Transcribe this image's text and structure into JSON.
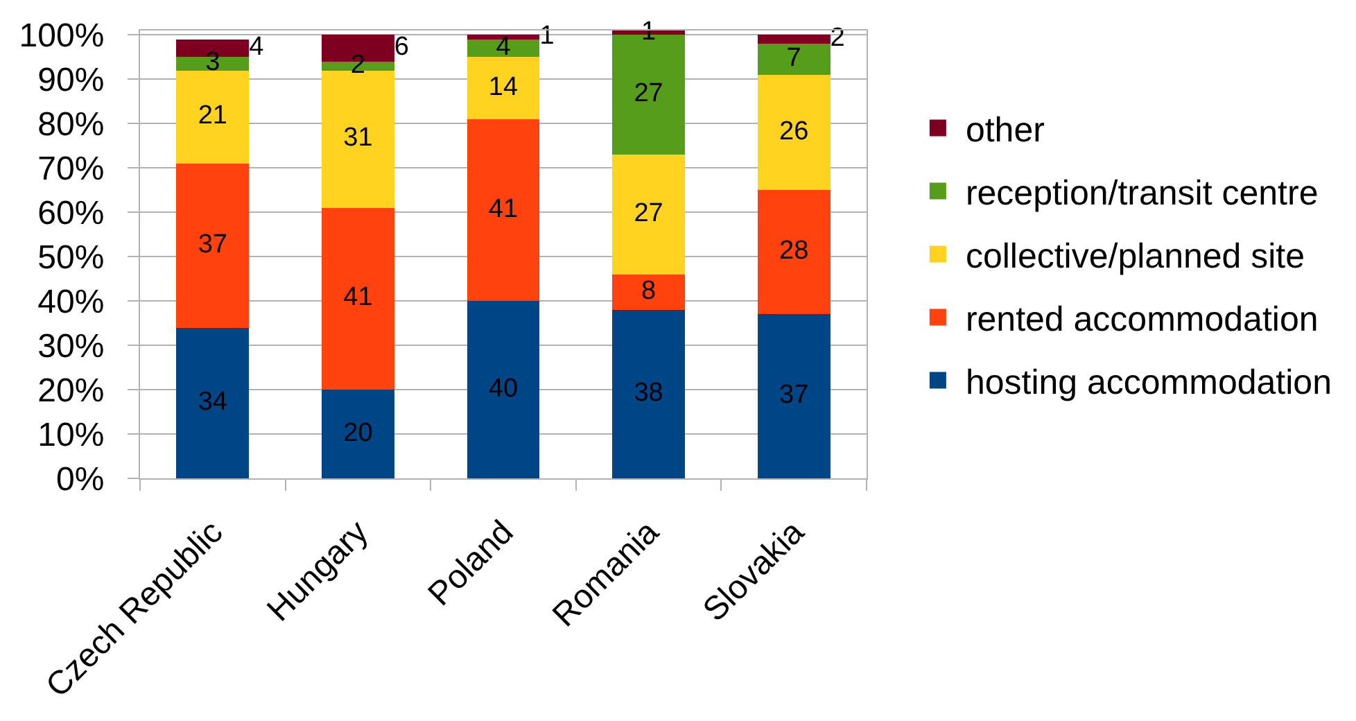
{
  "chart_data": {
    "type": "bar",
    "stacked": true,
    "categories": [
      "Czech Republic",
      "Hungary",
      "Poland",
      "Romania",
      "Slovakia"
    ],
    "series": [
      {
        "name": "hosting accommodation",
        "color": "#004586",
        "values": [
          34,
          20,
          40,
          38,
          37
        ]
      },
      {
        "name": "rented accommodation",
        "color": "#ff420e",
        "values": [
          37,
          41,
          41,
          8,
          28
        ]
      },
      {
        "name": "collective/planned site",
        "color": "#ffd320",
        "values": [
          21,
          31,
          14,
          27,
          26
        ]
      },
      {
        "name": "reception/transit centre",
        "color": "#579d1c",
        "values": [
          3,
          2,
          4,
          27,
          7
        ]
      },
      {
        "name": "other",
        "color": "#7e0021",
        "values": [
          4,
          6,
          1,
          1,
          2
        ]
      }
    ],
    "ylim": [
      0,
      101
    ],
    "yticks": [
      {
        "value": 0,
        "label": "0%"
      },
      {
        "value": 10,
        "label": "10%"
      },
      {
        "value": 20,
        "label": "20%"
      },
      {
        "value": 30,
        "label": "30%"
      },
      {
        "value": 40,
        "label": "40%"
      },
      {
        "value": 50,
        "label": "50%"
      },
      {
        "value": 60,
        "label": "60%"
      },
      {
        "value": 70,
        "label": "70%"
      },
      {
        "value": 80,
        "label": "80%"
      },
      {
        "value": 90,
        "label": "90%"
      },
      {
        "value": 100,
        "label": "100%"
      }
    ],
    "grid": "y",
    "legend": "right",
    "data_labels": true
  }
}
